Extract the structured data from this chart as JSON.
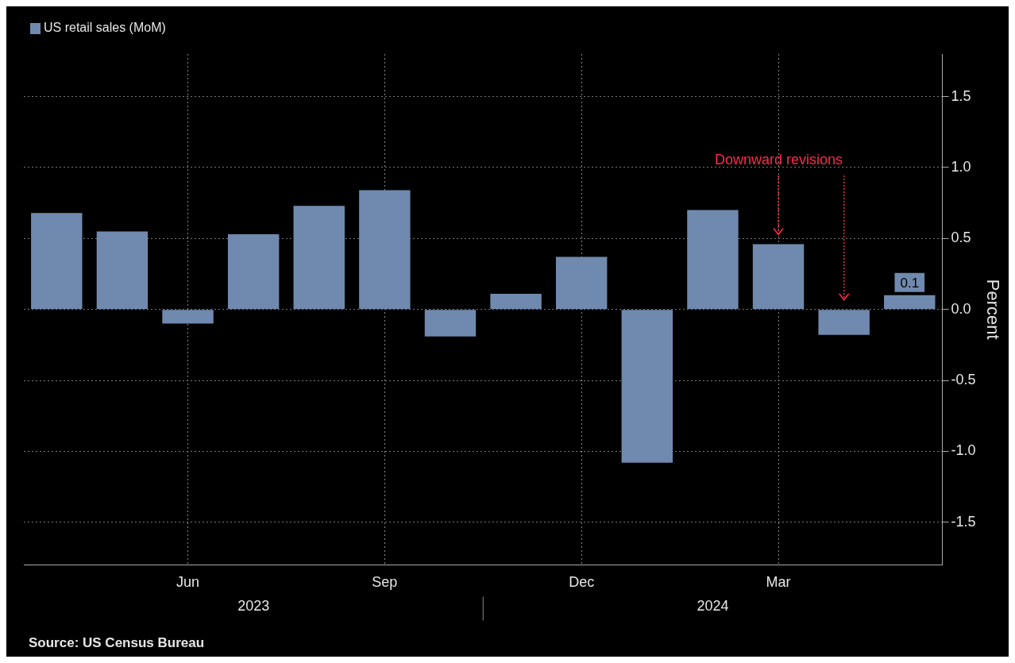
{
  "chart_data": {
    "type": "bar",
    "categories": [
      null,
      null,
      "Jun",
      null,
      null,
      "Sep",
      null,
      null,
      "Dec",
      null,
      null,
      "Mar",
      null,
      null
    ],
    "series": [
      {
        "name": "US retail sales (MoM)",
        "color": "#7089ae",
        "values": [
          0.68,
          0.55,
          -0.1,
          0.53,
          0.73,
          0.84,
          -0.19,
          0.11,
          0.37,
          -1.08,
          0.7,
          0.46,
          -0.18,
          0.1
        ],
        "value_labels": [
          null,
          null,
          null,
          null,
          null,
          null,
          null,
          null,
          null,
          null,
          null,
          null,
          null,
          "0.1"
        ]
      }
    ],
    "ylabel": "Percent",
    "ylim": [
      -1.8,
      1.8
    ],
    "yticks": [
      {
        "value": -1.5,
        "label": "-1.5"
      },
      {
        "value": -1,
        "label": "-1.0"
      },
      {
        "value": -0.5,
        "label": "-0.5"
      },
      {
        "value": 0,
        "label": "0.0"
      },
      {
        "value": 0.5,
        "label": "0.5"
      },
      {
        "value": 1,
        "label": "1.0"
      },
      {
        "value": 1.5,
        "label": "1.5"
      }
    ],
    "grid": true,
    "legend": "top left",
    "annotations": [
      "Downward revisions",
      "2023",
      "2024",
      "Source: US Census Bureau"
    ]
  }
}
